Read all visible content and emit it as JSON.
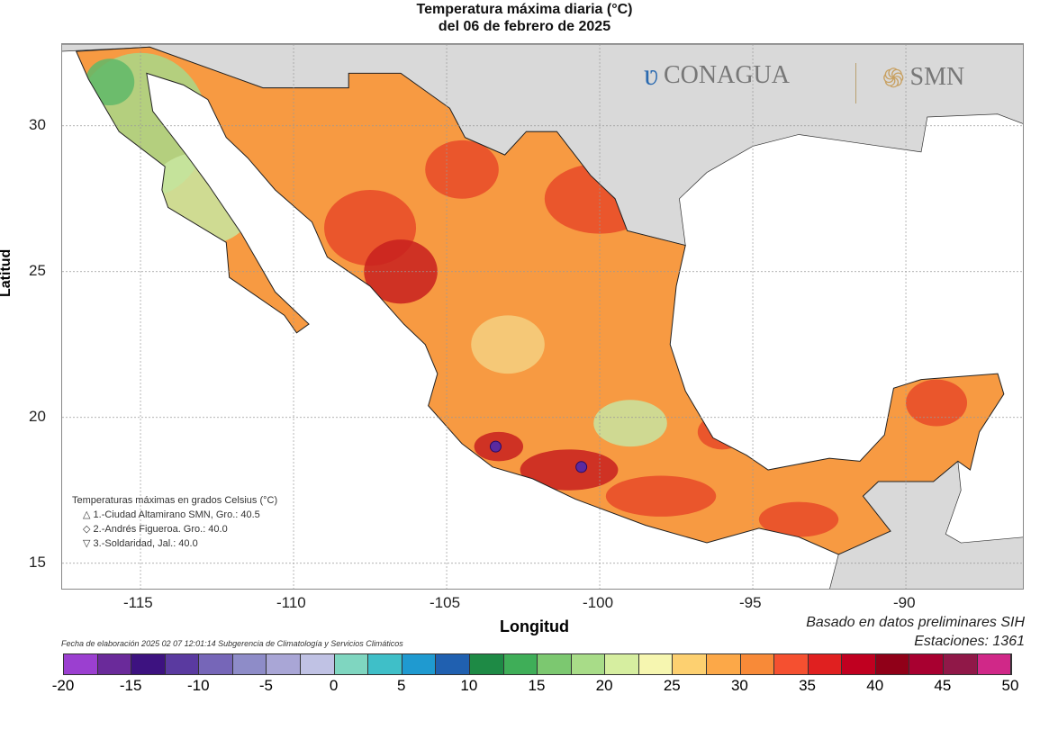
{
  "title": "Temperatura máxima diaria (°C)",
  "subtitle": "del 06 de febrero de 2025",
  "axes": {
    "xlabel": "Longitud",
    "ylabel": "Latitud",
    "xticks": [
      "-115",
      "-110",
      "-105",
      "-100",
      "-95",
      "-90"
    ],
    "yticks": [
      "30",
      "25",
      "20",
      "15"
    ]
  },
  "logos": {
    "left": "CONAGUA",
    "right": "SMN"
  },
  "legend": {
    "heading": "Temperaturas máximas en grados Celsius (°C)",
    "items": [
      {
        "symbol": "△",
        "text": "1.-Ciudad Altamirano SMN, Gro.: 40.5"
      },
      {
        "symbol": "◇",
        "text": "2.-Andrés Figueroa. Gro.: 40.0"
      },
      {
        "symbol": "▽",
        "text": "3.-Soldaridad, Jal.: 40.0"
      }
    ]
  },
  "source": "Basado en datos preliminares SIH",
  "stations": "Estaciones:  1361",
  "fecha": "Fecha de elaboración 2025 02 07 12:01:14 Subgerencia de Climatología y Servicios Climáticos",
  "colorbar": {
    "ticks": [
      "-20",
      "-15",
      "-10",
      "-5",
      "0",
      "5",
      "10",
      "15",
      "20",
      "25",
      "30",
      "35",
      "40",
      "45",
      "50"
    ],
    "colors": [
      "#9b3fd0",
      "#6a2a9a",
      "#3d1280",
      "#5a3aa0",
      "#7666b8",
      "#8e8cc8",
      "#a9a6d6",
      "#c0c2e4",
      "#7fd6c0",
      "#3fbfc8",
      "#1f9ad0",
      "#2060b0",
      "#1e8a45",
      "#3fae58",
      "#7cc870",
      "#a8dc88",
      "#d6eea0",
      "#f6f6b0",
      "#fdd070",
      "#fca848",
      "#f88a38",
      "#f55030",
      "#e02020",
      "#c00020",
      "#900018",
      "#a80030",
      "#901848",
      "#d02888"
    ]
  },
  "map_colors": {
    "base": "#f79a42",
    "hot": "#e84a28",
    "very_hot": "#c8201e",
    "cool": "#a8d888",
    "land_other": "#d9d9d9",
    "ocean": "#ffffff"
  }
}
